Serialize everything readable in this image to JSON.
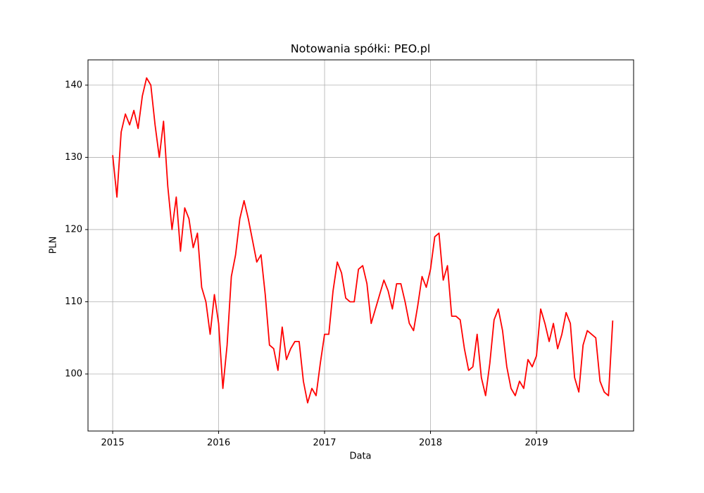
{
  "chart_data": {
    "type": "line",
    "title": "Notowania spółki: PEO.pl",
    "x_label": "Data",
    "y_label": "PLN",
    "color": "#ff0000",
    "grid": true,
    "xlim": [
      2014.767,
      2019.917
    ],
    "ylim": [
      92.1,
      143.5
    ],
    "xticks": [
      2015,
      2016,
      2017,
      2018,
      2019
    ],
    "yticks": [
      100,
      110,
      120,
      130,
      140
    ],
    "x": [
      2015,
      2015.04,
      2015.08,
      2015.12,
      2015.16,
      2015.2,
      2015.24,
      2015.28,
      2015.32,
      2015.36,
      2015.4,
      2015.44,
      2015.48,
      2015.52,
      2015.56,
      2015.6,
      2015.64,
      2015.68,
      2015.72,
      2015.76,
      2015.8,
      2015.84,
      2015.88,
      2015.92,
      2015.96,
      2016,
      2016.04,
      2016.08,
      2016.12,
      2016.16,
      2016.2,
      2016.24,
      2016.28,
      2016.32,
      2016.36,
      2016.4,
      2016.44,
      2016.48,
      2016.52,
      2016.56,
      2016.6,
      2016.64,
      2016.68,
      2016.72,
      2016.76,
      2016.8,
      2016.84,
      2016.88,
      2016.92,
      2016.96,
      2017,
      2017.04,
      2017.08,
      2017.12,
      2017.16,
      2017.2,
      2017.24,
      2017.28,
      2017.32,
      2017.36,
      2017.4,
      2017.44,
      2017.48,
      2017.52,
      2017.56,
      2017.6,
      2017.64,
      2017.68,
      2017.72,
      2017.76,
      2017.8,
      2017.84,
      2017.88,
      2017.92,
      2017.96,
      2018,
      2018.04,
      2018.08,
      2018.12,
      2018.16,
      2018.2,
      2018.24,
      2018.28,
      2018.32,
      2018.36,
      2018.4,
      2018.44,
      2018.48,
      2018.52,
      2018.56,
      2018.6,
      2018.64,
      2018.68,
      2018.72,
      2018.76,
      2018.8,
      2018.84,
      2018.88,
      2018.92,
      2018.96,
      2019,
      2019.04,
      2019.08,
      2019.12,
      2019.16,
      2019.2,
      2019.24,
      2019.28,
      2019.32,
      2019.36,
      2019.4,
      2019.44,
      2019.48,
      2019.52,
      2019.56,
      2019.6,
      2019.64,
      2019.68,
      2019.72
    ],
    "values": [
      130.3,
      124.5,
      133.5,
      136,
      134.5,
      136.5,
      134,
      138.5,
      141,
      140,
      134.5,
      130,
      135,
      126,
      120,
      124.5,
      117,
      123,
      121.5,
      117.5,
      119.5,
      112,
      110,
      105.5,
      111,
      107,
      98,
      104,
      113.5,
      116.5,
      121.5,
      124,
      121.5,
      118.5,
      115.5,
      116.5,
      111,
      104,
      103.5,
      100.5,
      106.5,
      102,
      103.5,
      104.5,
      104.5,
      99,
      96,
      98,
      97,
      101.5,
      105.5,
      105.5,
      111.5,
      115.5,
      114,
      110.5,
      110,
      110,
      114.5,
      115,
      112.5,
      107,
      109,
      111,
      113,
      111.5,
      109,
      112.5,
      112.5,
      110,
      107,
      106,
      109.5,
      113.5,
      112,
      114.5,
      119,
      119.5,
      113,
      115,
      108,
      108,
      107.5,
      103.5,
      100.5,
      101,
      105.5,
      99.5,
      97,
      101.5,
      107.5,
      109,
      106,
      101,
      98,
      97,
      99,
      98,
      102,
      101,
      102.5,
      109,
      107,
      104.5,
      107,
      103.5,
      105.5,
      108.5,
      107,
      99.5,
      97.5,
      104,
      106,
      105.5,
      105,
      99,
      97.5,
      97,
      107.4
    ]
  }
}
